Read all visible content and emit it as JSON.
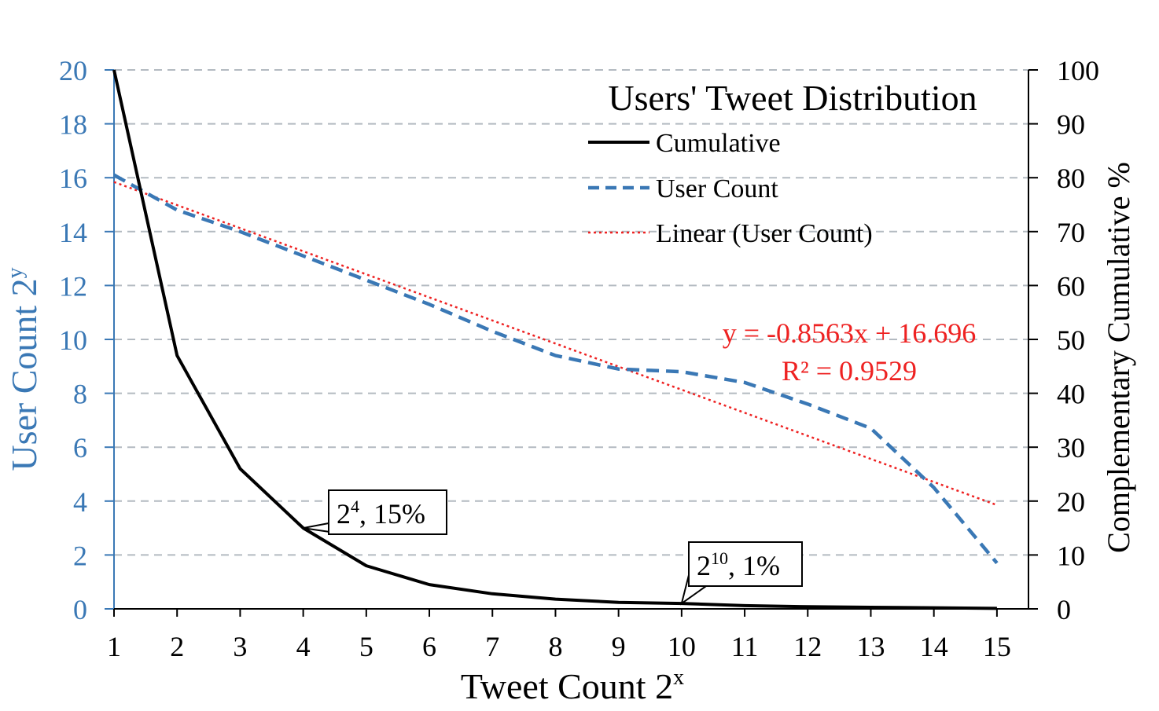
{
  "chart_data": {
    "type": "line",
    "title": "Users' Tweet Distribution",
    "xlabel": "Tweet Count 2",
    "xlabel_sup": "x",
    "ylabel_left": "User Count 2",
    "ylabel_left_sup": "y",
    "ylabel_right": "Complementary Cumulative %",
    "x": [
      1,
      2,
      3,
      4,
      5,
      6,
      7,
      8,
      9,
      10,
      11,
      12,
      13,
      14,
      15
    ],
    "x_ticks": [
      "1",
      "2",
      "3",
      "4",
      "5",
      "6",
      "7",
      "8",
      "9",
      "10",
      "11",
      "12",
      "13",
      "14",
      "15"
    ],
    "xlim": [
      1,
      15.5
    ],
    "ylim_left": [
      0,
      20
    ],
    "ylim_right": [
      0,
      100
    ],
    "y_left_ticks": [
      "0",
      "2",
      "4",
      "6",
      "8",
      "10",
      "12",
      "14",
      "16",
      "18",
      "20"
    ],
    "y_right_ticks": [
      "0",
      "10",
      "20",
      "30",
      "40",
      "50",
      "60",
      "70",
      "80",
      "90",
      "100"
    ],
    "grid": "horizontal dashed",
    "legend_position": "top-right",
    "series": [
      {
        "name": "Cumulative",
        "axis": "right",
        "style": "solid",
        "color": "#000000",
        "values": [
          100,
          47,
          26,
          15,
          8,
          4.5,
          2.8,
          1.8,
          1.2,
          1,
          0.6,
          0.4,
          0.3,
          0.2,
          0.1
        ]
      },
      {
        "name": "User Count",
        "axis": "left",
        "style": "dashed",
        "color": "#3a78b5",
        "values": [
          16.1,
          14.8,
          14.0,
          13.1,
          12.2,
          11.3,
          10.3,
          9.4,
          8.9,
          8.8,
          8.4,
          7.6,
          6.7,
          4.5,
          1.7
        ]
      },
      {
        "name": "Linear (User Count)",
        "axis": "left",
        "style": "dotted",
        "color": "#ee2222",
        "slope": -0.8563,
        "intercept": 16.696
      }
    ],
    "trendline_equation": "y = -0.8563x + 16.696",
    "trendline_r2": "R² = 0.9529",
    "annotations": [
      {
        "x": 4,
        "y_right": 15,
        "base": "2",
        "sup": "4",
        "text": ", 15%"
      },
      {
        "x": 10,
        "y_right": 1,
        "base": "2",
        "sup": "10",
        "text": ", 1%"
      }
    ],
    "colors": {
      "left_axis": "#3a78b5",
      "right_axis": "#000000",
      "trend_text": "#ee2222"
    }
  }
}
